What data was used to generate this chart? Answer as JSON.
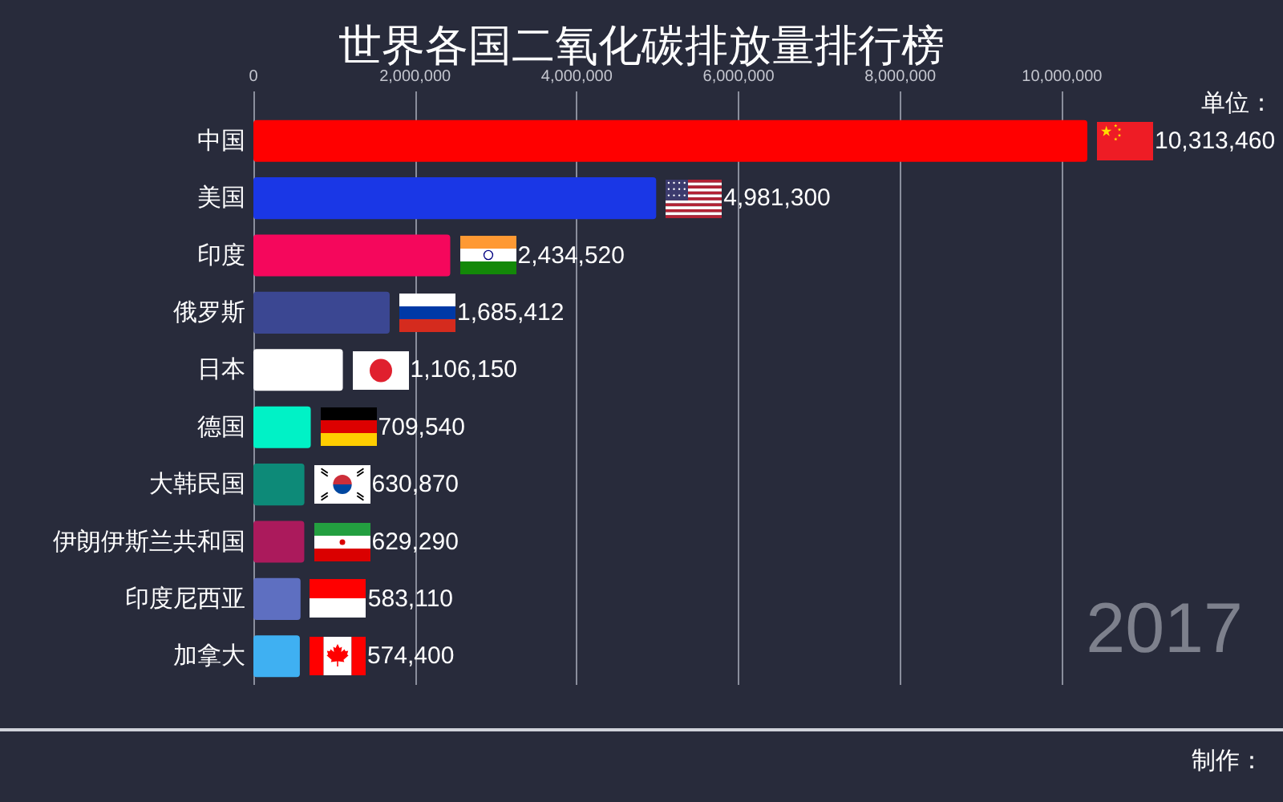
{
  "chart_data": {
    "type": "bar",
    "orientation": "horizontal",
    "title": "世界各国二氧化碳排放量排行榜",
    "categories": [
      "中国",
      "美国",
      "印度",
      "俄罗斯",
      "日本",
      "德国",
      "大韩民国",
      "伊朗伊斯兰共和国",
      "印度尼西亚",
      "加拿大"
    ],
    "values": [
      10313460,
      4981300,
      2434520,
      1685412,
      1106150,
      709540,
      630870,
      629290,
      583110,
      574400
    ],
    "value_labels": [
      "10,313,460",
      "4,981,300",
      "2,434,520",
      "1,685,412",
      "1,106,150",
      "709,540",
      "630,870",
      "629,290",
      "583,110",
      "574,400"
    ],
    "colors": [
      "#ff0000",
      "#1a37e6",
      "#f5075c",
      "#3b4792",
      "#ffffff",
      "#00f2c6",
      "#0d8a78",
      "#ab1a5c",
      "#5e6fc1",
      "#3fb0f2"
    ],
    "xlim": [
      0,
      10313460
    ],
    "xticks": [
      0,
      {
        "value": 2000000,
        "label": "2,000,000"
      },
      {
        "value": 4000000,
        "label": "4,000,000"
      },
      {
        "value": 6000000,
        "label": "6,000,000"
      },
      {
        "value": 8000000,
        "label": "8,000,000"
      },
      {
        "value": 10000000,
        "label": "10,000,000"
      }
    ],
    "grid": "x",
    "annotations": [
      "单位：",
      "2017",
      "制作："
    ]
  }
}
